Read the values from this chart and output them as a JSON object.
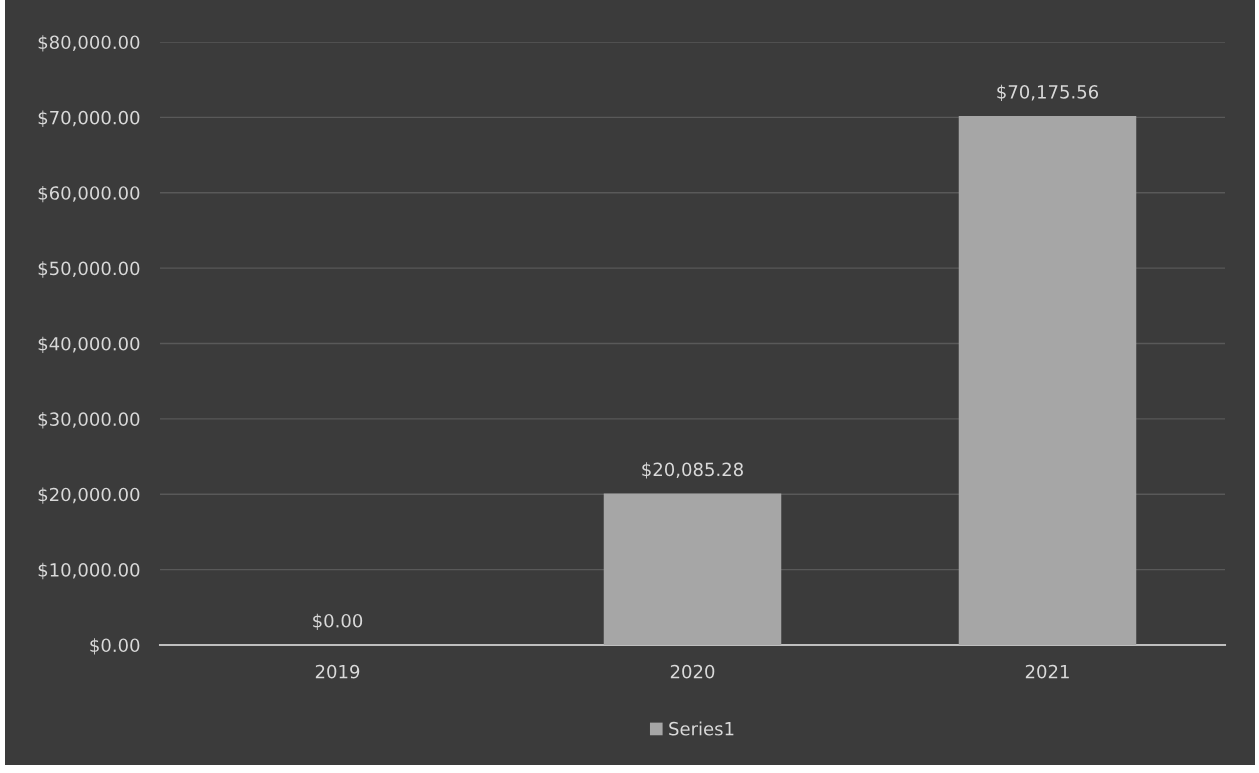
{
  "chart_data": {
    "type": "bar",
    "categories": [
      "2019",
      "2020",
      "2021"
    ],
    "series": [
      {
        "name": "Series1",
        "color": "#a6a6a6",
        "values": [
          0,
          20085.28,
          70175.56
        ],
        "value_labels": [
          "$0.00",
          "$20,085.28",
          "$70,175.56"
        ]
      }
    ],
    "ylim": [
      0,
      80000
    ],
    "yticks": [
      {
        "value": 0,
        "label": "$0.00"
      },
      {
        "value": 10000,
        "label": "$10,000.00"
      },
      {
        "value": 20000,
        "label": "$20,000.00"
      },
      {
        "value": 30000,
        "label": "$30,000.00"
      },
      {
        "value": 40000,
        "label": "$40,000.00"
      },
      {
        "value": 50000,
        "label": "$50,000.00"
      },
      {
        "value": 60000,
        "label": "$60,000.00"
      },
      {
        "value": 70000,
        "label": "$70,000.00"
      },
      {
        "value": 80000,
        "label": "$80,000.00"
      }
    ],
    "grid": "y",
    "legend": "bottom"
  }
}
